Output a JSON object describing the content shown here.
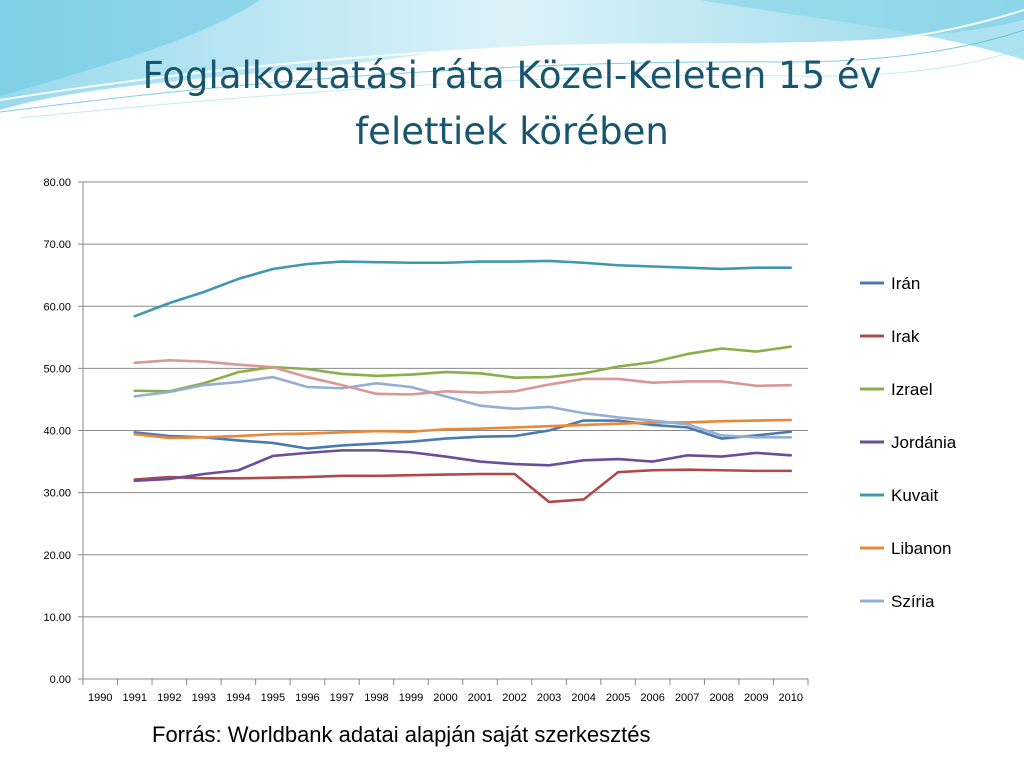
{
  "slide": {
    "title_line1": "Foglalkoztatási ráta Közel-Keleten 15 év",
    "title_line2": "felettiek körében",
    "source": "Forrás: Worldbank adatai alapján saját szerkesztés"
  },
  "chart_data": {
    "type": "line",
    "title": "",
    "xlabel": "",
    "ylabel": "",
    "ylim": [
      0,
      80
    ],
    "yticks": [
      "0.00",
      "10.00",
      "20.00",
      "30.00",
      "40.00",
      "50.00",
      "60.00",
      "70.00",
      "80.00"
    ],
    "categories": [
      "1990",
      "1991",
      "1992",
      "1993",
      "1994",
      "1995",
      "1996",
      "1997",
      "1998",
      "1999",
      "2000",
      "2001",
      "2002",
      "2003",
      "2004",
      "2005",
      "2006",
      "2007",
      "2008",
      "2009",
      "2010"
    ],
    "grid": "horizontal",
    "legend_position": "right",
    "series": [
      {
        "name": "Irán",
        "color": "#4a7ab0",
        "values": [
          null,
          39.7,
          39.1,
          38.9,
          38.4,
          38.0,
          37.1,
          37.6,
          37.9,
          38.2,
          38.7,
          39.0,
          39.1,
          40.0,
          41.6,
          41.6,
          40.9,
          40.5,
          38.7,
          39.2,
          39.8
        ]
      },
      {
        "name": "Irak",
        "color": "#b04a48",
        "values": [
          null,
          32.1,
          32.5,
          32.3,
          32.3,
          32.4,
          32.5,
          32.7,
          32.7,
          32.8,
          32.9,
          33.0,
          33.0,
          28.5,
          28.9,
          33.3,
          33.6,
          33.7,
          33.6,
          33.5,
          33.5
        ]
      },
      {
        "name": "Izrael",
        "color": "#8aaf4a",
        "values": [
          null,
          46.4,
          46.3,
          47.6,
          49.4,
          50.2,
          49.9,
          49.1,
          48.8,
          49.0,
          49.4,
          49.2,
          48.5,
          48.6,
          49.2,
          50.3,
          51.0,
          52.3,
          53.2,
          52.7,
          53.5
        ]
      },
      {
        "name": "Jordánia",
        "color": "#6a4e98",
        "values": [
          null,
          31.9,
          32.2,
          33.0,
          33.6,
          35.9,
          36.4,
          36.8,
          36.8,
          36.5,
          35.8,
          35.0,
          34.6,
          34.4,
          35.2,
          35.4,
          35.0,
          36.0,
          35.8,
          36.4,
          36.0
        ]
      },
      {
        "name": "Kuvait",
        "color": "#3f98b0",
        "values": [
          null,
          58.4,
          60.5,
          62.3,
          64.4,
          66.0,
          66.8,
          67.2,
          67.1,
          67.0,
          67.0,
          67.2,
          67.2,
          67.3,
          67.0,
          66.6,
          66.4,
          66.2,
          66.0,
          66.2,
          66.2
        ]
      },
      {
        "name": "Libanon",
        "color": "#e8883a",
        "values": [
          null,
          39.4,
          38.8,
          38.9,
          39.1,
          39.4,
          39.5,
          39.7,
          39.9,
          39.8,
          40.2,
          40.3,
          40.5,
          40.7,
          40.9,
          41.1,
          41.3,
          41.3,
          41.5,
          41.6,
          41.7
        ]
      },
      {
        "name": "Szíria",
        "color": "#94aed4",
        "values": [
          null,
          45.5,
          46.2,
          47.3,
          47.8,
          48.6,
          47.0,
          46.8,
          47.6,
          47.0,
          45.5,
          44.0,
          43.5,
          43.8,
          42.8,
          42.1,
          41.6,
          41.0,
          39.2,
          38.9,
          38.9
        ]
      },
      {
        "name": "",
        "color": "#d89898",
        "values": [
          null,
          50.9,
          51.3,
          51.1,
          50.6,
          50.2,
          48.6,
          47.3,
          45.9,
          45.8,
          46.3,
          46.1,
          46.3,
          47.4,
          48.3,
          48.3,
          47.7,
          47.9,
          47.9,
          47.2,
          47.3
        ]
      }
    ]
  }
}
